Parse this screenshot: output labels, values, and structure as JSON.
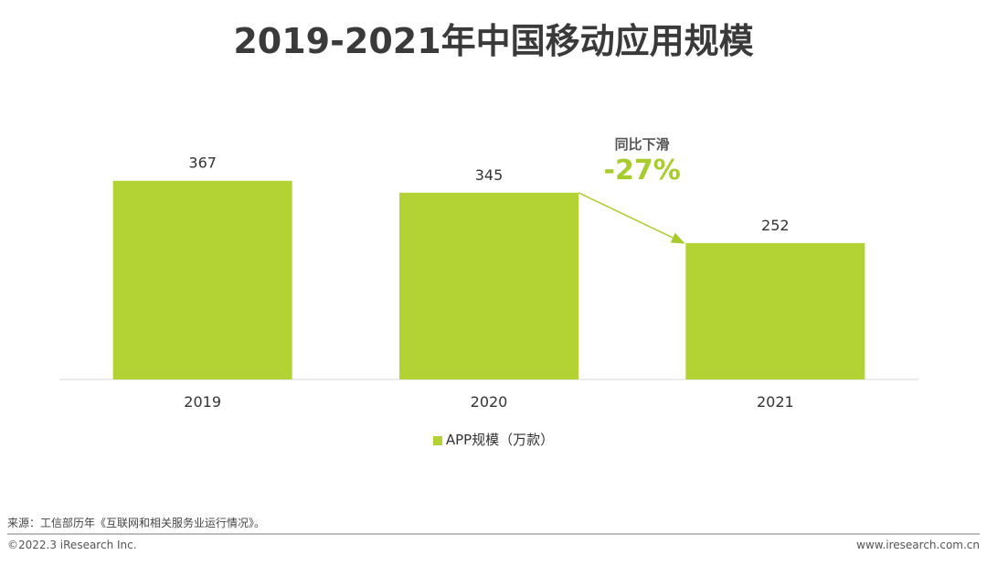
{
  "chart_data": {
    "type": "bar",
    "title": "2019-2021年中国移动应用规模",
    "categories": [
      "2019",
      "2020",
      "2021"
    ],
    "series": [
      {
        "name": "APP规模（万款）",
        "values": [
          367,
          345,
          252
        ]
      }
    ],
    "ylim": [
      0,
      500
    ],
    "grid": false,
    "legend_position": "bottom",
    "bar_color": "#b3d334",
    "annotation": {
      "label": "同比下滑",
      "value": "-27%",
      "from": "2020",
      "to": "2021",
      "color": "#a8cc2e"
    }
  },
  "footer": {
    "source": "来源：工信部历年《互联网和相关服务业运行情况》。",
    "copyright": "©2022.3 iResearch Inc.",
    "website": "www.iresearch.com.cn"
  }
}
